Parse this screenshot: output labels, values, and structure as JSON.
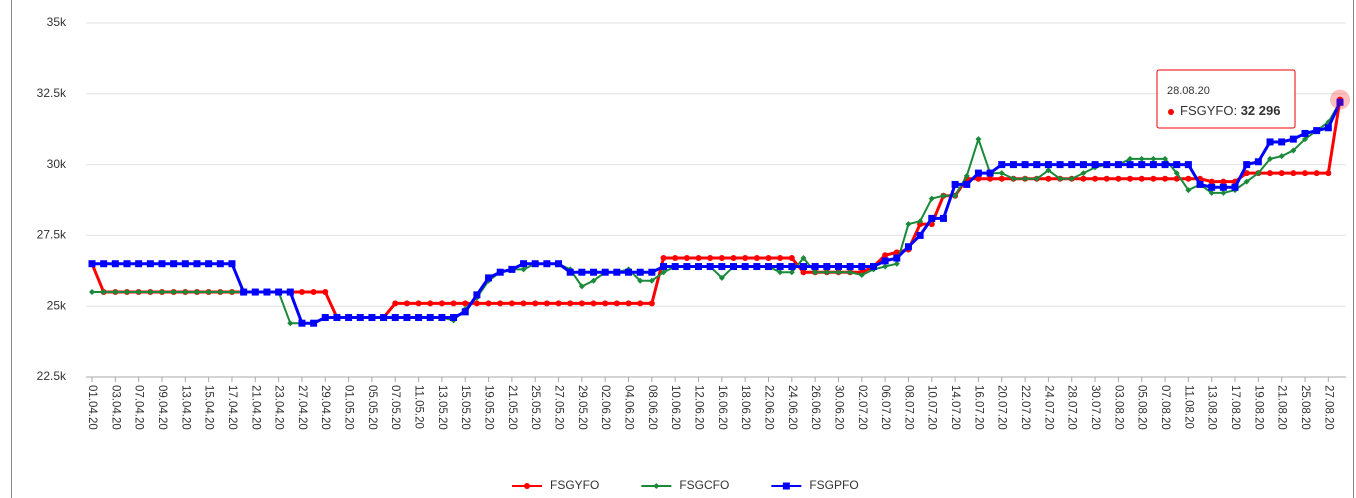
{
  "chart_data": {
    "type": "line",
    "categories": [
      "01.04.20",
      null,
      "03.04.20",
      null,
      "07.04.20",
      null,
      "09.04.20",
      null,
      "13.04.20",
      null,
      "15.04.20",
      null,
      "17.04.20",
      null,
      "21.04.20",
      null,
      "23.04.20",
      null,
      "27.04.20",
      null,
      "29.04.20",
      null,
      "01.05.20",
      null,
      "05.05.20",
      null,
      "07.05.20",
      null,
      "11.05.20",
      null,
      "13.05.20",
      null,
      "15.05.20",
      null,
      "19.05.20",
      null,
      "21.05.20",
      null,
      "25.05.20",
      null,
      "27.05.20",
      null,
      "29.05.20",
      null,
      "02.06.20",
      null,
      "04.06.20",
      null,
      "08.06.20",
      null,
      "10.06.20",
      null,
      "12.06.20",
      null,
      "16.06.20",
      null,
      "18.06.20",
      null,
      "22.06.20",
      null,
      "24.06.20",
      null,
      "26.06.20",
      null,
      "30.06.20",
      null,
      "02.07.20",
      null,
      "06.07.20",
      null,
      "08.07.20",
      null,
      "10.07.20",
      null,
      "14.07.20",
      null,
      "16.07.20",
      null,
      "20.07.20",
      null,
      "22.07.20",
      null,
      "24.07.20",
      null,
      "28.07.20",
      null,
      "30.07.20",
      null,
      "03.08.20",
      null,
      "05.08.20",
      null,
      "07.08.20",
      null,
      "11.08.20",
      null,
      "13.08.20",
      null,
      "17.08.20",
      null,
      "19.08.20",
      null,
      "21.08.20",
      null,
      "25.08.20",
      null,
      "27.08.20",
      null
    ],
    "series": [
      {
        "name": "FSGYFO",
        "color": "#ff0000",
        "marker": "circle",
        "values": [
          26500,
          25500,
          25500,
          25500,
          25500,
          25500,
          25500,
          25500,
          25500,
          25500,
          25500,
          25500,
          25500,
          25500,
          25500,
          25500,
          25500,
          25500,
          25500,
          25500,
          25500,
          24600,
          24600,
          24600,
          24600,
          24600,
          25100,
          25100,
          25100,
          25100,
          25100,
          25100,
          25100,
          25100,
          25100,
          25100,
          25100,
          25100,
          25100,
          25100,
          25100,
          25100,
          25100,
          25100,
          25100,
          25100,
          25100,
          25100,
          25100,
          26700,
          26700,
          26700,
          26700,
          26700,
          26700,
          26700,
          26700,
          26700,
          26700,
          26700,
          26700,
          26200,
          26200,
          26200,
          26200,
          26200,
          26200,
          26400,
          26800,
          26900,
          27000,
          27900,
          27900,
          28900,
          28900,
          29500,
          29500,
          29500,
          29500,
          29500,
          29500,
          29500,
          29500,
          29500,
          29500,
          29500,
          29500,
          29500,
          29500,
          29500,
          29500,
          29500,
          29500,
          29500,
          29500,
          29500,
          29400,
          29400,
          29400,
          29700,
          29700,
          29700,
          29700,
          29700,
          29700,
          29700,
          29700,
          32296
        ]
      },
      {
        "name": "FSGCFO",
        "color": "#1a8a3a",
        "marker": "diamond",
        "values": [
          25500,
          25500,
          25500,
          25500,
          25500,
          25500,
          25500,
          25500,
          25500,
          25500,
          25500,
          25500,
          25500,
          25500,
          25500,
          25500,
          25500,
          24400,
          24400,
          24400,
          24600,
          24600,
          24600,
          24600,
          24600,
          24600,
          24600,
          24600,
          24600,
          24600,
          24600,
          24500,
          24900,
          25300,
          25900,
          26200,
          26300,
          26300,
          26500,
          26500,
          26500,
          26300,
          25700,
          25900,
          26200,
          26200,
          26300,
          25900,
          25900,
          26200,
          26400,
          26400,
          26400,
          26400,
          26000,
          26400,
          26400,
          26400,
          26400,
          26200,
          26200,
          26700,
          26200,
          26200,
          26200,
          26200,
          26100,
          26300,
          26400,
          26500,
          27900,
          28000,
          28800,
          28900,
          28900,
          29600,
          30900,
          29700,
          29700,
          29500,
          29500,
          29500,
          29800,
          29500,
          29500,
          29700,
          29900,
          30000,
          30000,
          30200,
          30200,
          30200,
          30200,
          29700,
          29100,
          29300,
          29000,
          29000,
          29100,
          29400,
          29700,
          30200,
          30300,
          30500,
          30900,
          31200,
          31500,
          32200
        ]
      },
      {
        "name": "FSGPFO",
        "color": "#0000ff",
        "marker": "square",
        "values": [
          26500,
          26500,
          26500,
          26500,
          26500,
          26500,
          26500,
          26500,
          26500,
          26500,
          26500,
          26500,
          26500,
          25500,
          25500,
          25500,
          25500,
          25500,
          24400,
          24400,
          24600,
          24600,
          24600,
          24600,
          24600,
          24600,
          24600,
          24600,
          24600,
          24600,
          24600,
          24600,
          24800,
          25400,
          26000,
          26200,
          26300,
          26500,
          26500,
          26500,
          26500,
          26200,
          26200,
          26200,
          26200,
          26200,
          26200,
          26200,
          26200,
          26400,
          26400,
          26400,
          26400,
          26400,
          26400,
          26400,
          26400,
          26400,
          26400,
          26400,
          26400,
          26400,
          26400,
          26400,
          26400,
          26400,
          26400,
          26400,
          26600,
          26700,
          27100,
          27500,
          28100,
          28100,
          29300,
          29300,
          29700,
          29700,
          30000,
          30000,
          30000,
          30000,
          30000,
          30000,
          30000,
          30000,
          30000,
          30000,
          30000,
          30000,
          30000,
          30000,
          30000,
          30000,
          30000,
          29300,
          29200,
          29200,
          29200,
          30000,
          30100,
          30800,
          30800,
          30900,
          31100,
          31200,
          31300,
          32200
        ]
      }
    ],
    "ylim": [
      22500,
      35000
    ],
    "yticks": [
      {
        "value": 22500,
        "label": "22.5k"
      },
      {
        "value": 25000,
        "label": "25k"
      },
      {
        "value": 27500,
        "label": "27.5k"
      },
      {
        "value": 30000,
        "label": "30k"
      },
      {
        "value": 32500,
        "label": "32.5k"
      },
      {
        "value": 35000,
        "label": "35k"
      }
    ],
    "grid": true,
    "legend": "bottom",
    "tooltip": {
      "label": "28.08.20",
      "name": "FSGYFO",
      "value": 32296,
      "value_label": "32 296"
    }
  }
}
